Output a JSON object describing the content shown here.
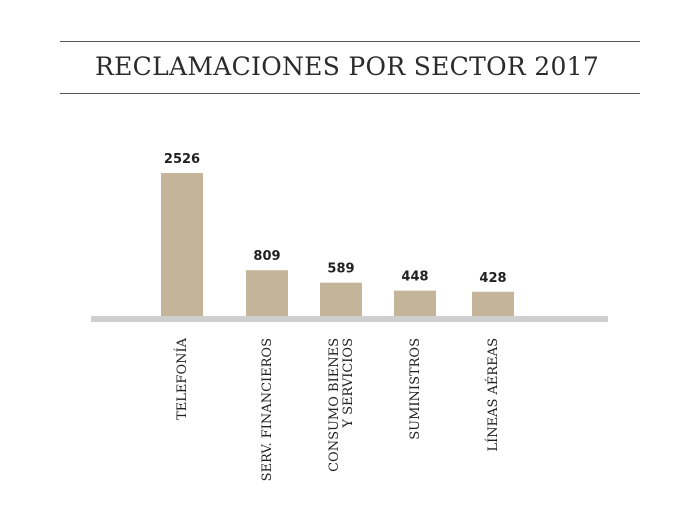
{
  "colors": {
    "bar": "#c4b59a",
    "baseline": "#cfcfcf",
    "text": "#222222"
  },
  "chart_data": {
    "type": "bar",
    "title": "RECLAMACIONES POR SECTOR 2017",
    "categories": [
      "TELEFONÍA",
      "SERV. FINANCIEROS",
      "CONSUMO BIENES\nY SERVICIOS",
      "SUMINISTROS",
      "LÍNEAS AÉREAS"
    ],
    "values": [
      2526,
      809,
      589,
      448,
      428
    ],
    "data_labels": [
      "2526",
      "809",
      "589",
      "448",
      "428"
    ],
    "xlabel": "",
    "ylabel": "",
    "ylim": [
      0,
      2526
    ],
    "grid": false
  }
}
